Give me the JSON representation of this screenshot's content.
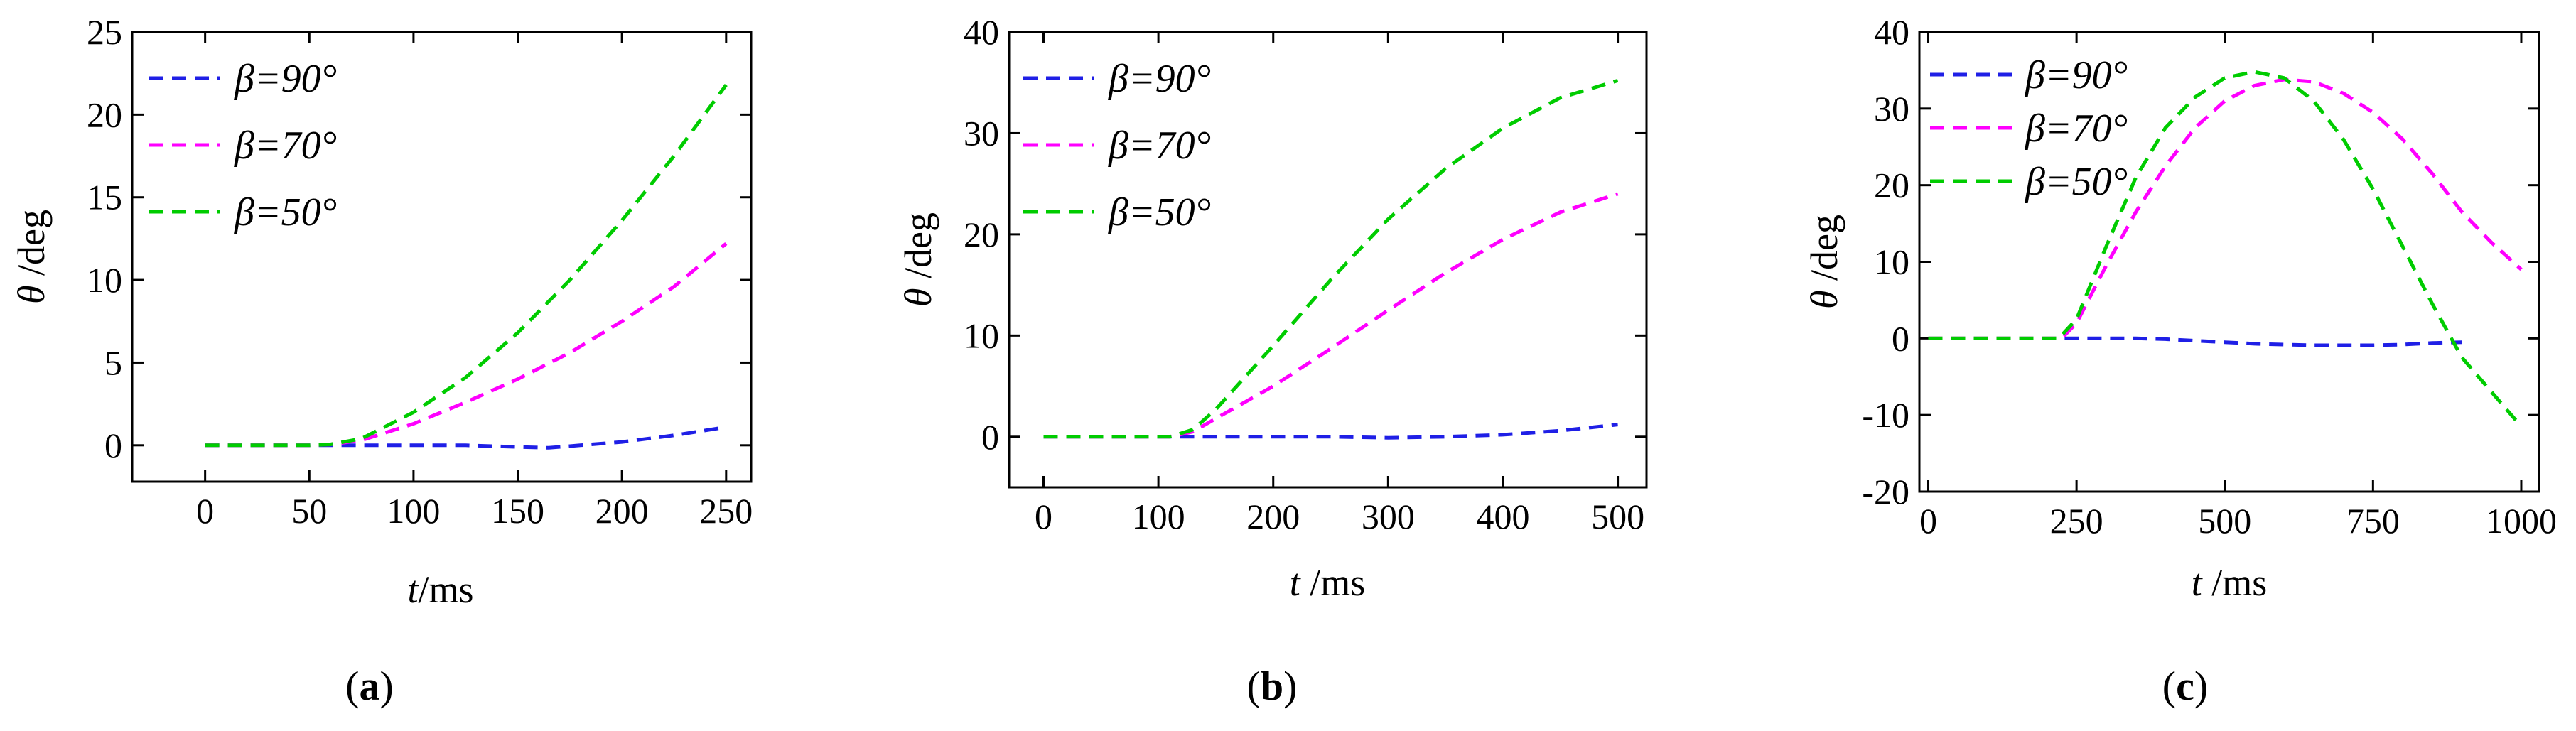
{
  "chart_data": [
    {
      "type": "line",
      "panel_label": "a",
      "xlabel": {
        "var": "t",
        "unit": "/ms"
      },
      "ylabel": {
        "var": "θ",
        "unit": " /deg"
      },
      "xlim": [
        -35,
        262
      ],
      "ylim": [
        -2.2,
        25
      ],
      "xticks": [
        0,
        50,
        100,
        150,
        200,
        250
      ],
      "yticks": [
        0,
        5,
        10,
        15,
        20,
        25
      ],
      "legend_position": "top-left",
      "line_style": "dashed",
      "series": [
        {
          "name": "β=90°",
          "color": "#1f1fe6",
          "points": [
            [
              0,
              0
            ],
            [
              50,
              0
            ],
            [
              75,
              0
            ],
            [
              100,
              0
            ],
            [
              125,
              0
            ],
            [
              150,
              -0.1
            ],
            [
              165,
              -0.15
            ],
            [
              180,
              0
            ],
            [
              200,
              0.2
            ],
            [
              225,
              0.6
            ],
            [
              250,
              1.1
            ]
          ]
        },
        {
          "name": "β=70°",
          "color": "#ff00ff",
          "points": [
            [
              0,
              0
            ],
            [
              50,
              0
            ],
            [
              60,
              0.05
            ],
            [
              75,
              0.3
            ],
            [
              100,
              1.3
            ],
            [
              125,
              2.6
            ],
            [
              150,
              4.0
            ],
            [
              175,
              5.6
            ],
            [
              200,
              7.5
            ],
            [
              225,
              9.6
            ],
            [
              250,
              12.2
            ]
          ]
        },
        {
          "name": "β=50°",
          "color": "#00cc00",
          "points": [
            [
              0,
              0
            ],
            [
              50,
              0
            ],
            [
              60,
              0.05
            ],
            [
              75,
              0.4
            ],
            [
              100,
              2.0
            ],
            [
              125,
              4.1
            ],
            [
              150,
              6.8
            ],
            [
              175,
              10.0
            ],
            [
              200,
              13.6
            ],
            [
              225,
              17.5
            ],
            [
              250,
              21.8
            ]
          ]
        }
      ]
    },
    {
      "type": "line",
      "panel_label": "b",
      "xlabel": {
        "var": "t",
        "unit": " /ms"
      },
      "ylabel": {
        "var": "θ",
        "unit": " /deg"
      },
      "xlim": [
        -30,
        525
      ],
      "ylim": [
        -5,
        40
      ],
      "xticks": [
        0,
        100,
        200,
        300,
        400,
        500
      ],
      "yticks": [
        0,
        10,
        20,
        30,
        40
      ],
      "legend_position": "top-left",
      "line_style": "dashed",
      "series": [
        {
          "name": "β=90°",
          "color": "#1f1fe6",
          "points": [
            [
              0,
              0
            ],
            [
              100,
              0
            ],
            [
              150,
              0
            ],
            [
              200,
              0
            ],
            [
              250,
              0
            ],
            [
              300,
              -0.1
            ],
            [
              350,
              0
            ],
            [
              400,
              0.2
            ],
            [
              450,
              0.6
            ],
            [
              500,
              1.2
            ]
          ]
        },
        {
          "name": "β=70°",
          "color": "#ff00ff",
          "points": [
            [
              0,
              0
            ],
            [
              110,
              0
            ],
            [
              130,
              0.5
            ],
            [
              150,
              1.8
            ],
            [
              200,
              5.0
            ],
            [
              250,
              8.7
            ],
            [
              300,
              12.5
            ],
            [
              350,
              16.2
            ],
            [
              400,
              19.5
            ],
            [
              450,
              22.2
            ],
            [
              500,
              24.0
            ]
          ]
        },
        {
          "name": "β=50°",
          "color": "#00cc00",
          "points": [
            [
              0,
              0
            ],
            [
              110,
              0
            ],
            [
              130,
              0.7
            ],
            [
              150,
              2.7
            ],
            [
              200,
              9.0
            ],
            [
              250,
              15.5
            ],
            [
              300,
              21.5
            ],
            [
              350,
              26.5
            ],
            [
              400,
              30.5
            ],
            [
              450,
              33.5
            ],
            [
              500,
              35.2
            ]
          ]
        }
      ]
    },
    {
      "type": "line",
      "panel_label": "c",
      "xlabel": {
        "var": "t",
        "unit": " /ms"
      },
      "ylabel": {
        "var": "θ",
        "unit": " /deg"
      },
      "xlim": [
        -15,
        1030
      ],
      "ylim": [
        -20,
        40
      ],
      "xticks": [
        0,
        250,
        500,
        750,
        1000
      ],
      "yticks": [
        -20,
        -10,
        0,
        10,
        20,
        30,
        40
      ],
      "legend_position": "top-left",
      "line_style": "dashed",
      "series": [
        {
          "name": "β=90°",
          "color": "#1f1fe6",
          "points": [
            [
              230,
              0
            ],
            [
              300,
              0
            ],
            [
              350,
              0
            ],
            [
              400,
              -0.1
            ],
            [
              450,
              -0.3
            ],
            [
              500,
              -0.5
            ],
            [
              550,
              -0.7
            ],
            [
              600,
              -0.8
            ],
            [
              650,
              -0.9
            ],
            [
              700,
              -0.9
            ],
            [
              750,
              -0.9
            ],
            [
              800,
              -0.8
            ],
            [
              850,
              -0.6
            ],
            [
              900,
              -0.5
            ]
          ]
        },
        {
          "name": "β=70°",
          "color": "#ff00ff",
          "points": [
            [
              0,
              0
            ],
            [
              225,
              0
            ],
            [
              250,
              2.0
            ],
            [
              300,
              9.5
            ],
            [
              350,
              16.5
            ],
            [
              400,
              22.5
            ],
            [
              450,
              27.5
            ],
            [
              500,
              31.0
            ],
            [
              550,
              33.0
            ],
            [
              600,
              33.8
            ],
            [
              650,
              33.5
            ],
            [
              700,
              32.0
            ],
            [
              750,
              29.5
            ],
            [
              800,
              26.0
            ],
            [
              850,
              21.5
            ],
            [
              900,
              16.5
            ],
            [
              950,
              12.5
            ],
            [
              1000,
              9.0
            ]
          ]
        },
        {
          "name": "β=50°",
          "color": "#00cc00",
          "points": [
            [
              0,
              0
            ],
            [
              220,
              0
            ],
            [
              250,
              2.5
            ],
            [
              300,
              12.0
            ],
            [
              350,
              21.0
            ],
            [
              400,
              27.5
            ],
            [
              450,
              31.5
            ],
            [
              500,
              34.0
            ],
            [
              550,
              34.8
            ],
            [
              600,
              34.0
            ],
            [
              650,
              31.0
            ],
            [
              700,
              26.0
            ],
            [
              750,
              19.5
            ],
            [
              800,
              12.0
            ],
            [
              850,
              4.5
            ],
            [
              900,
              -2.5
            ],
            [
              950,
              -7.0
            ],
            [
              1000,
              -11.5
            ]
          ]
        }
      ]
    }
  ]
}
